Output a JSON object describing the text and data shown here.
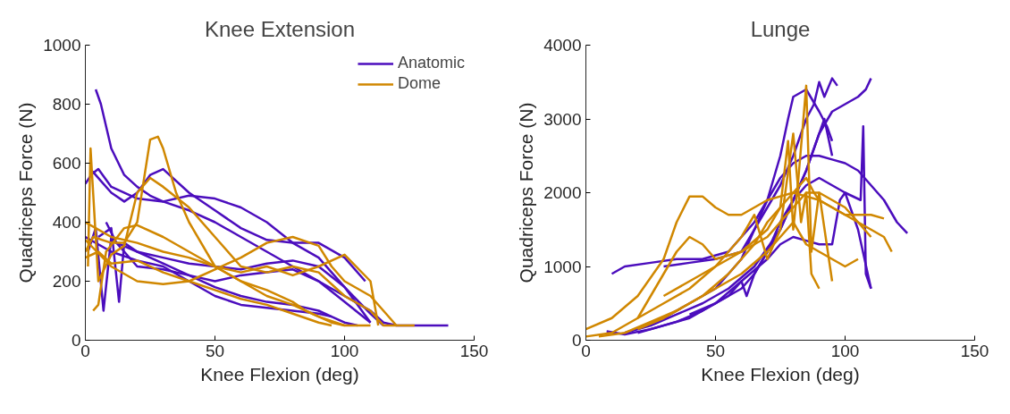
{
  "chart_data": [
    {
      "type": "line",
      "title": "Knee Extension",
      "xlabel": "Knee Flexion (deg)",
      "ylabel": "Quadriceps Force (N)",
      "xlim": [
        0,
        150
      ],
      "ylim": [
        0,
        1000
      ],
      "xticks": [
        0,
        50,
        100,
        150
      ],
      "yticks": [
        0,
        200,
        400,
        600,
        800,
        1000
      ],
      "grid": false,
      "legend": "top right",
      "series": [
        {
          "name": "Anatomic",
          "color": "#4b0dbd",
          "x": [
            4,
            6,
            10,
            15,
            20,
            25,
            30,
            40,
            50,
            60,
            70,
            80,
            90,
            100,
            110,
            115,
            120,
            130,
            140
          ],
          "values": [
            850,
            800,
            650,
            560,
            520,
            490,
            470,
            440,
            400,
            350,
            300,
            250,
            200,
            150,
            100,
            60,
            50,
            50,
            50
          ]
        },
        {
          "color": "#4b0dbd",
          "x": [
            0,
            3,
            6,
            10,
            15,
            20,
            25,
            30,
            40,
            50,
            60,
            70,
            80,
            90,
            100,
            108
          ],
          "values": [
            530,
            570,
            540,
            500,
            470,
            500,
            560,
            580,
            500,
            440,
            380,
            340,
            330,
            330,
            280,
            200
          ]
        },
        {
          "color": "#4b0dbd",
          "x": [
            2,
            5,
            10,
            20,
            30,
            40,
            50,
            60,
            70,
            80,
            90,
            100,
            110
          ],
          "values": [
            560,
            580,
            520,
            480,
            470,
            490,
            480,
            450,
            400,
            330,
            280,
            180,
            60
          ]
        },
        {
          "color": "#4b0dbd",
          "x": [
            1,
            4,
            7,
            10,
            15,
            20,
            30,
            40,
            50,
            60,
            70,
            80,
            90,
            100,
            110
          ],
          "values": [
            300,
            380,
            100,
            350,
            300,
            250,
            240,
            220,
            200,
            220,
            230,
            240,
            200,
            130,
            60
          ]
        },
        {
          "color": "#4b0dbd",
          "x": [
            5,
            10,
            13,
            15,
            20,
            30,
            40,
            50,
            60,
            70,
            80,
            90,
            95,
            100,
            105
          ],
          "values": [
            350,
            380,
            130,
            330,
            300,
            260,
            220,
            180,
            150,
            130,
            120,
            100,
            80,
            60,
            50
          ]
        },
        {
          "color": "#4b0dbd",
          "x": [
            8,
            12,
            20,
            30,
            40,
            50,
            60,
            70,
            80,
            90,
            100,
            110,
            115
          ],
          "values": [
            400,
            330,
            300,
            280,
            260,
            250,
            240,
            260,
            270,
            250,
            180,
            90,
            50
          ]
        },
        {
          "color": "#4b0dbd",
          "x": [
            0,
            10,
            20,
            30,
            40,
            50,
            60,
            70,
            80,
            90,
            95
          ],
          "values": [
            350,
            300,
            270,
            250,
            200,
            150,
            120,
            110,
            100,
            90,
            80
          ]
        },
        {
          "name": "Dome",
          "color": "#d08700",
          "x": [
            0,
            3,
            10,
            15,
            20,
            25,
            28,
            30,
            35,
            40,
            50,
            60,
            70,
            80,
            90,
            100,
            110
          ],
          "values": [
            300,
            350,
            330,
            330,
            400,
            680,
            690,
            650,
            500,
            400,
            250,
            200,
            150,
            120,
            80,
            50,
            50
          ]
        },
        {
          "color": "#d08700",
          "x": [
            1,
            2,
            5,
            10,
            15,
            20,
            25,
            30,
            40,
            50,
            60,
            70,
            80,
            90,
            100,
            110,
            115,
            120,
            127
          ],
          "values": [
            250,
            650,
            200,
            290,
            320,
            500,
            550,
            520,
            450,
            350,
            250,
            230,
            250,
            230,
            150,
            100,
            50,
            50,
            50
          ]
        },
        {
          "color": "#d08700",
          "x": [
            0,
            10,
            20,
            30,
            40,
            50,
            60,
            70,
            80,
            90,
            95,
            100,
            110,
            115,
            120
          ],
          "values": [
            340,
            250,
            200,
            190,
            200,
            240,
            280,
            330,
            350,
            320,
            250,
            200,
            150,
            100,
            50
          ]
        },
        {
          "color": "#d08700",
          "x": [
            3,
            5,
            8,
            15,
            20,
            30,
            40,
            50,
            60,
            70,
            80,
            85,
            90,
            95,
            100
          ],
          "values": [
            100,
            120,
            300,
            380,
            390,
            350,
            300,
            250,
            200,
            170,
            130,
            100,
            80,
            60,
            50
          ]
        },
        {
          "color": "#d08700",
          "x": [
            0,
            10,
            20,
            30,
            40,
            50,
            60,
            70,
            80,
            90,
            100,
            110,
            113
          ],
          "values": [
            400,
            350,
            330,
            300,
            280,
            250,
            230,
            250,
            220,
            250,
            290,
            200,
            50
          ]
        },
        {
          "color": "#d08700",
          "x": [
            0,
            5,
            10,
            20,
            30,
            40,
            50,
            60,
            70,
            80,
            90,
            95
          ],
          "values": [
            280,
            300,
            260,
            270,
            230,
            200,
            170,
            140,
            120,
            90,
            60,
            50
          ]
        }
      ]
    },
    {
      "type": "line",
      "title": "Lunge",
      "xlabel": "Knee Flexion (deg)",
      "ylabel": "Quadriceps Force (N)",
      "xlim": [
        0,
        150
      ],
      "ylim": [
        0,
        4000
      ],
      "xticks": [
        0,
        50,
        100,
        150
      ],
      "yticks": [
        0,
        1000,
        2000,
        3000,
        4000
      ],
      "grid": false,
      "series": [
        {
          "color": "#4b0dbd",
          "x": [
            10,
            15,
            25,
            35,
            45,
            55,
            60,
            65,
            70,
            75,
            80,
            85,
            90,
            95,
            100,
            105,
            110,
            115,
            120,
            124
          ],
          "values": [
            900,
            1000,
            1050,
            1100,
            1100,
            1200,
            1400,
            1600,
            1900,
            2200,
            2400,
            2500,
            2500,
            2450,
            2400,
            2300,
            2100,
            1900,
            1600,
            1450
          ]
        },
        {
          "color": "#4b0dbd",
          "x": [
            20,
            30,
            40,
            50,
            60,
            65,
            70,
            75,
            78,
            80,
            85,
            90,
            93,
            95
          ],
          "values": [
            150,
            300,
            500,
            700,
            1100,
            1500,
            1900,
            2500,
            3000,
            3300,
            3400,
            3100,
            2900,
            2700
          ]
        },
        {
          "color": "#4b0dbd",
          "x": [
            30,
            40,
            50,
            55,
            60,
            65,
            70,
            75,
            80,
            85,
            88,
            90,
            92,
            95,
            97
          ],
          "values": [
            1000,
            1050,
            1100,
            1150,
            1200,
            1500,
            1800,
            2100,
            2500,
            3000,
            3200,
            3500,
            3300,
            3550,
            3450
          ]
        },
        {
          "color": "#4b0dbd",
          "x": [
            15,
            25,
            35,
            45,
            55,
            65,
            75,
            85,
            90,
            95,
            100,
            105,
            108,
            110
          ],
          "values": [
            100,
            200,
            350,
            500,
            700,
            1000,
            1500,
            2300,
            2800,
            3100,
            3200,
            3300,
            3400,
            3550
          ]
        },
        {
          "color": "#4b0dbd",
          "x": [
            20,
            30,
            40,
            50,
            60,
            70,
            75,
            80,
            85,
            90,
            95,
            98,
            100,
            105,
            110
          ],
          "values": [
            100,
            200,
            300,
            500,
            800,
            1100,
            1300,
            1400,
            1350,
            1300,
            1300,
            1900,
            2000,
            1500,
            700
          ]
        },
        {
          "color": "#4b0dbd",
          "x": [
            40,
            50,
            60,
            65,
            70,
            75,
            80,
            85,
            90,
            95,
            100,
            106,
            107,
            108,
            110
          ],
          "values": [
            350,
            500,
            700,
            900,
            1200,
            1600,
            1900,
            2100,
            2200,
            2100,
            2000,
            1900,
            2900,
            900,
            700
          ]
        },
        {
          "color": "#4b0dbd",
          "x": [
            8,
            15,
            25,
            35,
            45,
            55,
            60,
            62,
            65,
            75,
            85,
            92,
            95
          ],
          "values": [
            120,
            80,
            150,
            250,
            400,
            600,
            800,
            600,
            900,
            1500,
            2300,
            3000,
            2500
          ]
        },
        {
          "color": "#d08700",
          "x": [
            0,
            10,
            20,
            30,
            35,
            40,
            45,
            50,
            55,
            60,
            65,
            70,
            75,
            80,
            85,
            90,
            95,
            100,
            105,
            110,
            115
          ],
          "values": [
            150,
            300,
            600,
            1100,
            1600,
            1950,
            1950,
            1800,
            1700,
            1700,
            1800,
            1900,
            1950,
            2000,
            1950,
            1900,
            1800,
            1700,
            1700,
            1700,
            1650
          ]
        },
        {
          "color": "#d08700",
          "x": [
            20,
            25,
            30,
            35,
            40,
            45,
            50,
            55,
            60,
            70,
            75,
            78,
            80,
            82,
            85,
            87,
            90,
            95
          ],
          "values": [
            300,
            600,
            900,
            1200,
            1400,
            1300,
            1100,
            1150,
            1200,
            1500,
            1800,
            2700,
            1500,
            2200,
            3450,
            1200,
            2000,
            800
          ]
        },
        {
          "color": "#d08700",
          "x": [
            5,
            15,
            25,
            35,
            45,
            55,
            65,
            70,
            75,
            80,
            85,
            88,
            90,
            95,
            100,
            105,
            110
          ],
          "values": [
            50,
            100,
            250,
            400,
            600,
            900,
            1300,
            1600,
            1800,
            2000,
            2200,
            2000,
            1900,
            1800,
            1700,
            1600,
            1400
          ]
        },
        {
          "color": "#d08700",
          "x": [
            0,
            10,
            20,
            30,
            40,
            50,
            60,
            65,
            70,
            75,
            80,
            83,
            85,
            87,
            90
          ],
          "values": [
            50,
            100,
            300,
            500,
            700,
            1000,
            1400,
            1700,
            1100,
            1500,
            2800,
            1600,
            2000,
            900,
            700
          ]
        },
        {
          "color": "#d08700",
          "x": [
            30,
            40,
            50,
            60,
            70,
            75,
            80,
            85,
            90,
            95,
            100,
            105,
            110,
            115,
            118
          ],
          "values": [
            600,
            800,
            1000,
            1200,
            1400,
            1600,
            1800,
            2000,
            2000,
            1900,
            1800,
            1600,
            1500,
            1400,
            1200
          ]
        },
        {
          "color": "#d08700",
          "x": [
            20,
            30,
            40,
            50,
            60,
            70,
            75,
            80,
            85,
            90,
            95,
            100,
            105
          ],
          "values": [
            150,
            300,
            500,
            700,
            900,
            1200,
            1400,
            1600,
            1300,
            1200,
            1100,
            1000,
            1100
          ]
        }
      ]
    }
  ]
}
